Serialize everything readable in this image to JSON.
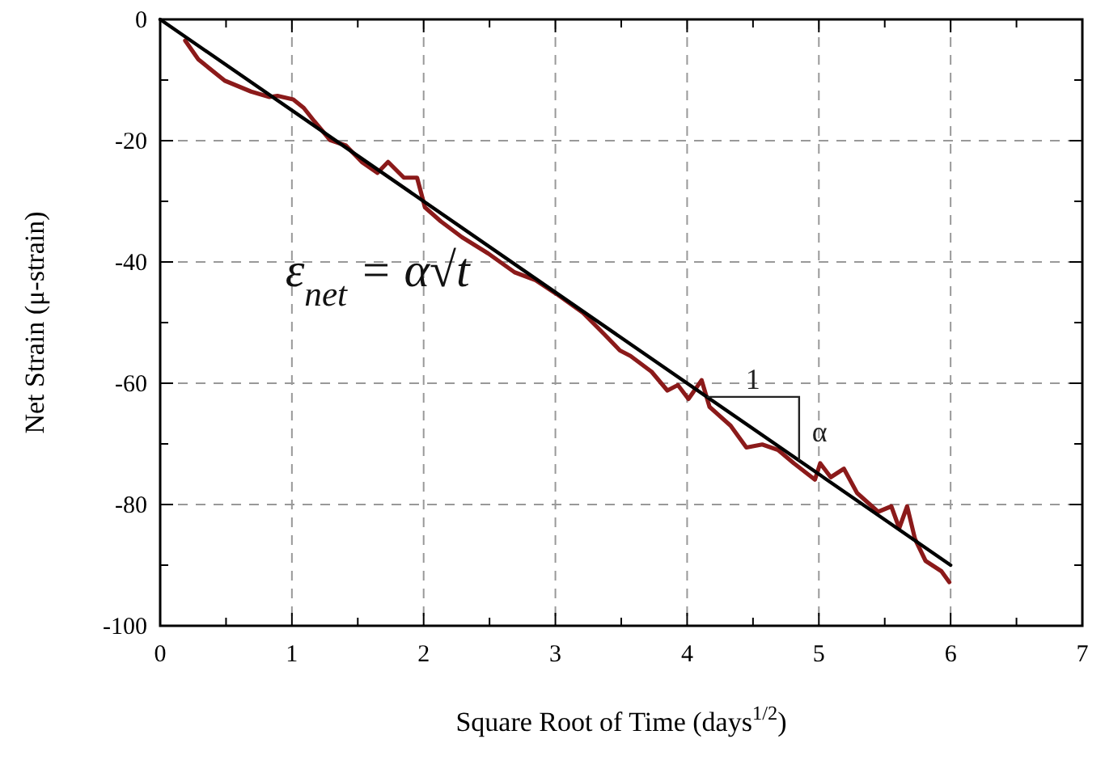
{
  "chart_data": {
    "type": "line",
    "xlabel": "Square Root of Time (days$^{1/2}$)",
    "ylabel": "Net Strain (μ-strain)",
    "xlim": [
      0,
      7
    ],
    "xticks": [
      0,
      {
        "value": 0.5,
        "label": null
      },
      1,
      {
        "value": 1.5,
        "label": null
      },
      2,
      {
        "value": 2.5,
        "label": null
      },
      3,
      {
        "value": 3.5,
        "label": null
      },
      4,
      {
        "value": 4.5,
        "label": null
      },
      5,
      {
        "value": 5.5,
        "label": null
      },
      6,
      {
        "value": 6.5,
        "label": null
      },
      7
    ],
    "ylim": [
      -100,
      0
    ],
    "yticks": [
      -100,
      {
        "value": -90,
        "label": null
      },
      -80,
      {
        "value": -70,
        "label": null
      },
      -60,
      {
        "value": -50,
        "label": null
      },
      -40,
      {
        "value": -30,
        "label": null
      },
      -20,
      {
        "value": -10,
        "label": null
      },
      0
    ],
    "grid": true,
    "marker": "none",
    "series": [
      {
        "color": "#8b1a1a",
        "x": [
          0.19,
          0.29,
          0.49,
          0.69,
          0.83,
          0.89,
          1.01,
          1.09,
          1.17,
          1.29,
          1.41,
          1.53,
          1.65,
          1.73,
          1.85,
          1.95,
          2.01,
          2.13,
          2.29,
          2.49,
          2.69,
          2.85,
          3.01,
          3.21,
          3.37,
          3.49,
          3.57,
          3.73,
          3.85,
          3.93,
          4.01,
          4.11,
          4.17,
          4.33,
          4.45,
          4.57,
          4.69,
          4.81,
          4.97,
          5.01,
          5.09,
          5.19,
          5.29,
          5.45,
          5.55,
          5.61,
          5.67,
          5.73,
          5.81,
          5.93,
          5.99
        ],
        "values": [
          -3.5,
          -6.6,
          -10.1,
          -11.9,
          -12.8,
          -12.6,
          -13.2,
          -14.6,
          -16.8,
          -19.9,
          -20.8,
          -23.5,
          -25.3,
          -23.5,
          -26.1,
          -26.1,
          -31,
          -33.3,
          -35.9,
          -38.6,
          -41.7,
          -43,
          -45.3,
          -48.4,
          -51.9,
          -54.6,
          -55.5,
          -58.1,
          -61.2,
          -60.3,
          -62.6,
          -59.5,
          -63.9,
          -67,
          -70.6,
          -70.1,
          -71,
          -73.2,
          -75.9,
          -73.2,
          -75.5,
          -74.1,
          -78.1,
          -81.2,
          -80.3,
          -83.9,
          -80.3,
          -85.7,
          -89.3,
          -91,
          -92.8
        ]
      },
      {
        "color": "#000000",
        "x": [
          0,
          6
        ],
        "values": [
          0,
          -90
        ]
      }
    ],
    "annotations": [
      "ε$_{net}$ = α√t",
      "1",
      {
        "text": "α",
        "x": 4.85,
        "y": -72.75
      }
    ]
  }
}
